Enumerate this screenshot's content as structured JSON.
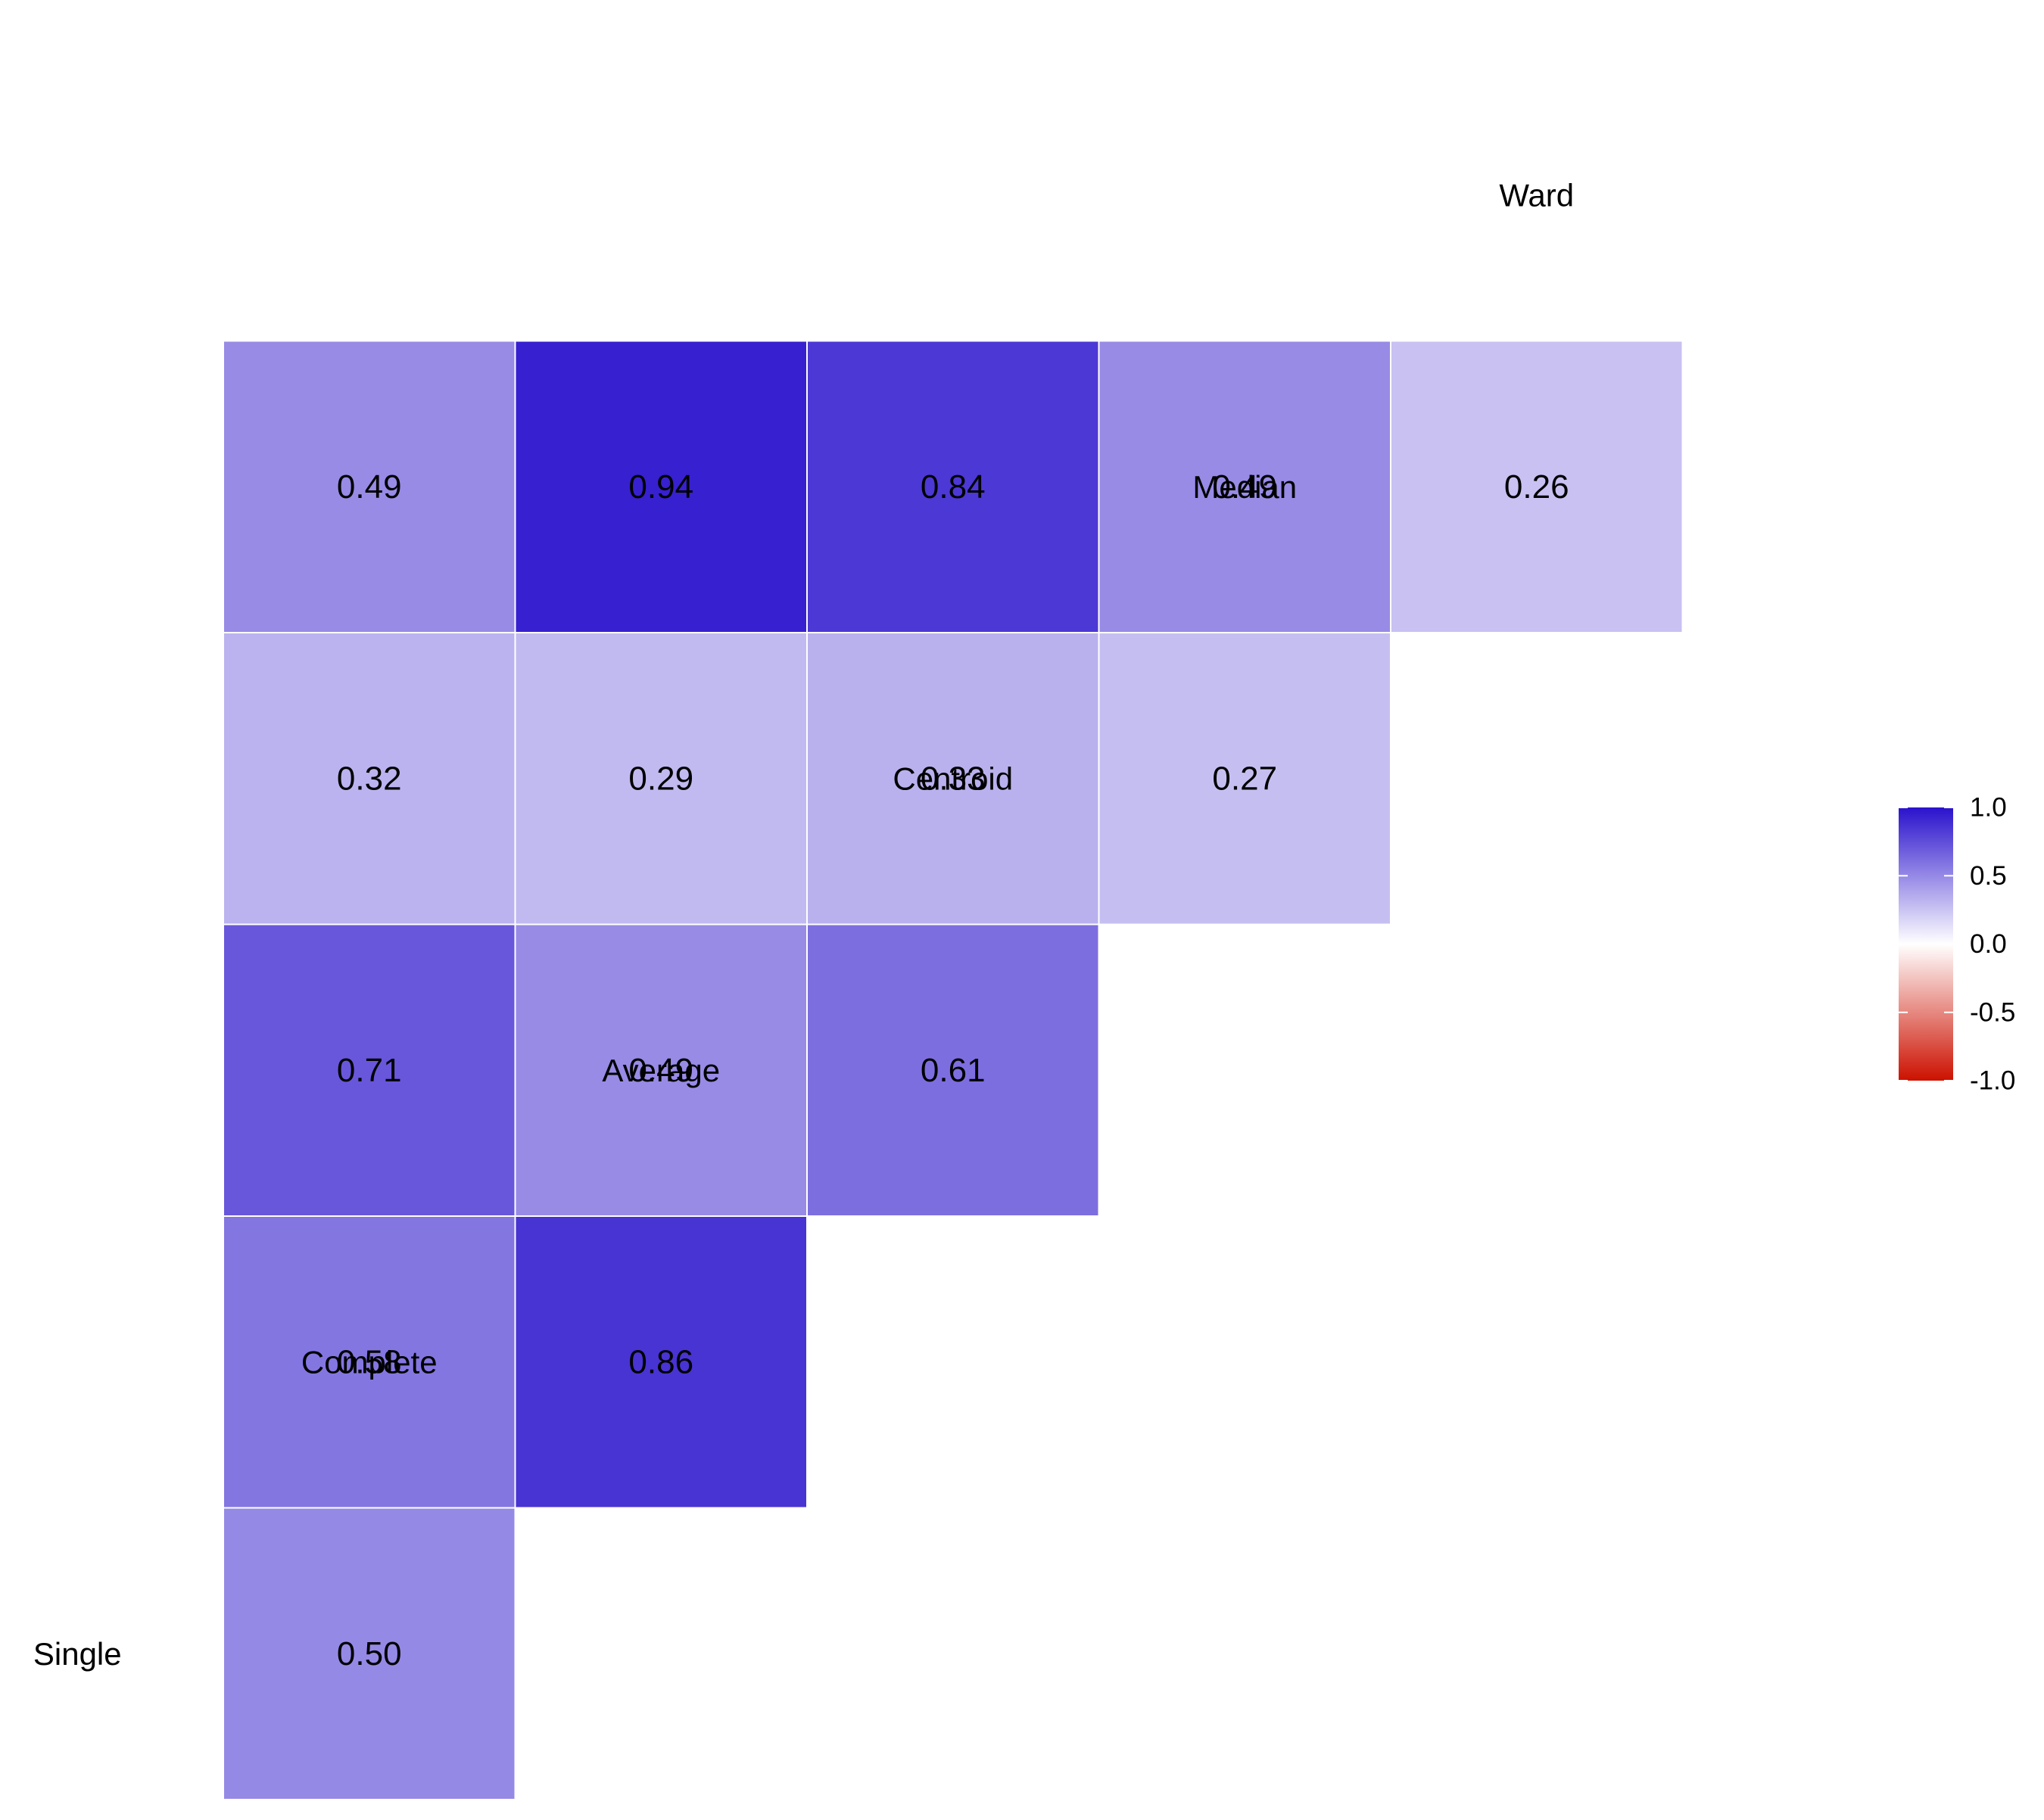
{
  "chart_data": {
    "type": "heatmap",
    "variables": [
      "Single",
      "Complete",
      "Average",
      "Centroid",
      "Median",
      "Ward"
    ],
    "cells": [
      {
        "row": "Single",
        "col": "Complete",
        "value": 0.5,
        "label": "0.50"
      },
      {
        "row": "Single",
        "col": "Average",
        "value": 0.58,
        "label": "0.58"
      },
      {
        "row": "Single",
        "col": "Centroid",
        "value": 0.71,
        "label": "0.71"
      },
      {
        "row": "Single",
        "col": "Median",
        "value": 0.32,
        "label": "0.32"
      },
      {
        "row": "Single",
        "col": "Ward",
        "value": 0.49,
        "label": "0.49"
      },
      {
        "row": "Complete",
        "col": "Average",
        "value": 0.86,
        "label": "0.86"
      },
      {
        "row": "Complete",
        "col": "Centroid",
        "value": 0.49,
        "label": "0.49"
      },
      {
        "row": "Complete",
        "col": "Median",
        "value": 0.29,
        "label": "0.29"
      },
      {
        "row": "Complete",
        "col": "Ward",
        "value": 0.94,
        "label": "0.94"
      },
      {
        "row": "Average",
        "col": "Centroid",
        "value": 0.61,
        "label": "0.61"
      },
      {
        "row": "Average",
        "col": "Median",
        "value": 0.33,
        "label": "0.33"
      },
      {
        "row": "Average",
        "col": "Ward",
        "value": 0.84,
        "label": "0.84"
      },
      {
        "row": "Centroid",
        "col": "Median",
        "value": 0.27,
        "label": "0.27"
      },
      {
        "row": "Centroid",
        "col": "Ward",
        "value": 0.49,
        "label": "0.49"
      },
      {
        "row": "Median",
        "col": "Ward",
        "value": 0.26,
        "label": "0.26"
      }
    ],
    "legend": {
      "title": "",
      "placement": "right",
      "range": [
        -1.0,
        1.0
      ],
      "ticks": [
        "1.0",
        "0.5",
        "0.0",
        "-0.5",
        "-1.0"
      ],
      "colors": {
        "low": "#cc1100",
        "mid": "#ffffff",
        "high": "#2a12cc"
      }
    },
    "colors": {
      "cell_border": "#ffffff",
      "text": "#000000"
    }
  }
}
